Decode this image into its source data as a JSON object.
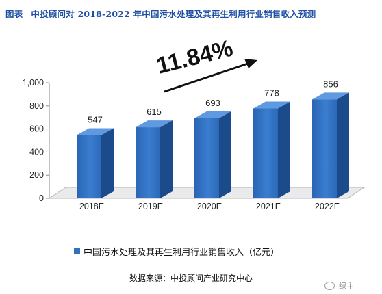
{
  "header": {
    "lead": "图表",
    "title": "中投顾问对 2018-2022 年中国污水处理及其再生利用行业销售收入预测"
  },
  "chart_data": {
    "type": "bar",
    "categories": [
      "2018E",
      "2019E",
      "2020E",
      "2021E",
      "2022E"
    ],
    "series": [
      {
        "name": "中国污水处理及其再生利用行业销售收入（亿元）",
        "values": [
          547,
          615,
          693,
          778,
          856
        ],
        "color": "#2f72c2"
      }
    ],
    "ylim": [
      0,
      1000
    ],
    "yticks": [
      0,
      200,
      400,
      600,
      800,
      1000
    ],
    "ytick_labels": [
      "0",
      "200",
      "400",
      "600",
      "800",
      "1,000"
    ],
    "data_labels": [
      "547",
      "615",
      "693",
      "778",
      "856"
    ],
    "annotation": "11.84%",
    "legend_position": "bottom",
    "grid": false
  },
  "footer": {
    "source": "数据来源：中投顾问产业研究中心",
    "watermark": "绿主"
  }
}
